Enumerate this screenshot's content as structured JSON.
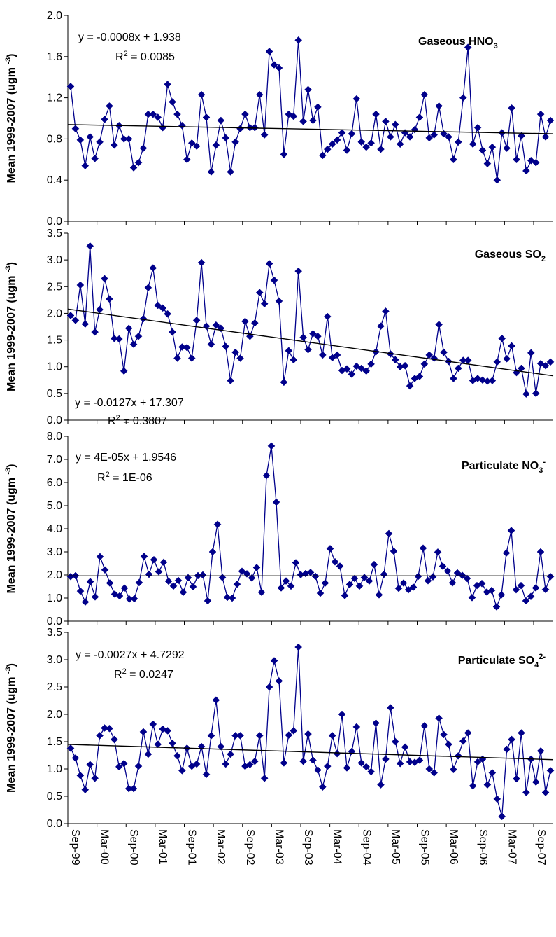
{
  "chart_data": [
    {
      "type": "line",
      "title": "Gaseous HNO3",
      "title_parts": {
        "base": "Gaseous HNO",
        "sub": "3",
        "sup": ""
      },
      "ylabel": "Mean 1999-2007 (ugm -3)",
      "ylim": [
        0,
        2.0
      ],
      "yticks": [
        "0.0",
        "0.4",
        "0.8",
        "1.2",
        "1.6",
        "2.0"
      ],
      "equation": "y = -0.0008x + 1.938",
      "r2": "0.0085",
      "trend": [
        0.94,
        0.85
      ],
      "series": [
        {
          "name": "",
          "values": [
            1.31,
            0.9,
            0.79,
            0.54,
            0.82,
            0.61,
            0.77,
            0.99,
            1.12,
            0.74,
            0.93,
            0.8,
            0.8,
            0.52,
            0.57,
            0.71,
            1.04,
            1.04,
            1.01,
            0.91,
            1.33,
            1.16,
            1.04,
            0.93,
            0.6,
            0.76,
            0.73,
            1.23,
            1.01,
            0.48,
            0.74,
            0.98,
            0.81,
            0.48,
            0.77,
            0.9,
            1.04,
            0.91,
            0.91,
            1.23,
            0.84,
            1.65,
            1.52,
            1.49,
            0.65,
            1.04,
            1.02,
            1.76,
            0.97,
            1.28,
            0.98,
            1.11,
            0.64,
            0.7,
            0.75,
            0.79,
            0.86,
            0.69,
            0.85,
            1.19,
            0.77,
            0.72,
            0.76,
            1.04,
            0.7,
            0.97,
            0.82,
            0.94,
            0.75,
            0.86,
            0.82,
            0.89,
            1.01,
            1.23,
            0.81,
            0.84,
            1.12,
            0.85,
            0.82,
            0.6,
            0.77,
            1.2,
            1.69,
            0.75,
            0.91,
            0.69,
            0.56,
            0.72,
            0.4,
            0.86,
            0.71,
            1.1,
            0.6,
            0.83,
            0.49,
            0.59,
            0.57,
            1.04,
            0.82,
            0.98
          ]
        }
      ],
      "color": "#00008b"
    },
    {
      "type": "line",
      "title": "Gaseous SO2",
      "title_parts": {
        "base": "Gaseous SO",
        "sub": "2",
        "sup": ""
      },
      "ylabel": "Mean 1999-2007 (ugm -3)",
      "ylim": [
        0,
        3.5
      ],
      "yticks": [
        "0.0",
        "0.5",
        "1.0",
        "1.5",
        "2.0",
        "2.5",
        "3.0",
        "3.5"
      ],
      "equation": "y = -0.0127x + 17.307",
      "r2": "0.3807",
      "trend": [
        2.08,
        0.83
      ],
      "series": [
        {
          "name": "",
          "values": [
            1.96,
            1.87,
            2.53,
            1.8,
            3.26,
            1.65,
            2.07,
            2.65,
            2.27,
            1.53,
            1.52,
            0.92,
            1.72,
            1.42,
            1.57,
            1.9,
            2.48,
            2.85,
            2.15,
            2.1,
            1.99,
            1.65,
            1.16,
            1.37,
            1.36,
            1.16,
            1.87,
            2.95,
            1.76,
            1.42,
            1.78,
            1.72,
            1.38,
            0.74,
            1.27,
            1.16,
            1.85,
            1.57,
            1.82,
            2.39,
            2.18,
            2.93,
            2.62,
            2.23,
            0.71,
            1.3,
            1.13,
            2.79,
            1.55,
            1.32,
            1.62,
            1.57,
            1.22,
            1.94,
            1.17,
            1.22,
            0.93,
            0.96,
            0.86,
            1.01,
            0.97,
            0.92,
            1.05,
            1.28,
            1.76,
            2.04,
            1.24,
            1.13,
            1.0,
            1.02,
            0.64,
            0.78,
            0.82,
            1.05,
            1.22,
            1.16,
            1.79,
            1.27,
            1.1,
            0.78,
            0.97,
            1.12,
            1.12,
            0.74,
            0.78,
            0.75,
            0.73,
            0.74,
            1.09,
            1.53,
            1.15,
            1.39,
            0.89,
            0.97,
            0.49,
            1.26,
            0.5,
            1.06,
            1.02,
            1.09
          ]
        }
      ],
      "color": "#00008b"
    },
    {
      "type": "line",
      "title": "Particulate NO3-",
      "title_parts": {
        "base": "Particulate NO",
        "sub": "3",
        "sup": "-"
      },
      "ylabel": "Mean 1999-2007 (ugm -3)",
      "ylim": [
        0,
        8.0
      ],
      "yticks": [
        "0.0",
        "1.0",
        "2.0",
        "3.0",
        "4.0",
        "5.0",
        "6.0",
        "7.0",
        "8.0"
      ],
      "equation": "y = 4E-05x + 1.9546",
      "r2": "1E-06",
      "trend": [
        1.96,
        1.96
      ],
      "series": [
        {
          "name": "",
          "values": [
            1.93,
            1.97,
            1.3,
            0.83,
            1.71,
            1.05,
            2.79,
            2.22,
            1.65,
            1.17,
            1.09,
            1.43,
            0.96,
            0.97,
            1.67,
            2.8,
            2.03,
            2.66,
            2.14,
            2.55,
            1.73,
            1.52,
            1.76,
            1.25,
            1.88,
            1.49,
            1.97,
            2.0,
            0.88,
            3.0,
            4.19,
            1.89,
            1.03,
            1.0,
            1.6,
            2.16,
            2.05,
            1.87,
            2.32,
            1.25,
            6.3,
            7.58,
            5.15,
            1.44,
            1.74,
            1.52,
            2.53,
            2.01,
            2.06,
            2.11,
            1.94,
            1.21,
            1.65,
            3.14,
            2.57,
            2.38,
            1.11,
            1.59,
            1.85,
            1.52,
            1.89,
            1.74,
            2.45,
            1.14,
            2.03,
            3.79,
            3.03,
            1.42,
            1.65,
            1.36,
            1.47,
            1.94,
            3.16,
            1.75,
            1.92,
            2.99,
            2.38,
            2.17,
            1.66,
            2.09,
            1.98,
            1.85,
            1.02,
            1.54,
            1.63,
            1.26,
            1.33,
            0.62,
            1.14,
            2.95,
            3.92,
            1.36,
            1.54,
            0.88,
            1.07,
            1.44,
            3.0,
            1.37,
            1.93
          ]
        }
      ],
      "color": "#00008b"
    },
    {
      "type": "line",
      "title": "Particulate SO42-",
      "title_parts": {
        "base": "Particulate SO",
        "sub": "4",
        "sup": "2-"
      },
      "ylabel": "Mean 1999-2007 (ugm -3)",
      "ylim": [
        0,
        3.5
      ],
      "yticks": [
        "0.0",
        "0.5",
        "1.0",
        "1.5",
        "2.0",
        "2.5",
        "3.0",
        "3.5"
      ],
      "equation": "y = -0.0027x + 4.7292",
      "r2": "0.0247",
      "trend": [
        1.45,
        1.17
      ],
      "series": [
        {
          "name": "",
          "values": [
            1.38,
            1.2,
            0.88,
            0.62,
            1.08,
            0.83,
            1.61,
            1.75,
            1.74,
            1.54,
            1.04,
            1.1,
            0.64,
            0.64,
            1.05,
            1.68,
            1.27,
            1.82,
            1.45,
            1.73,
            1.7,
            1.47,
            1.24,
            0.97,
            1.38,
            1.05,
            1.09,
            1.41,
            0.9,
            1.61,
            2.26,
            1.41,
            1.09,
            1.27,
            1.61,
            1.61,
            1.05,
            1.08,
            1.14,
            1.61,
            0.83,
            2.5,
            2.98,
            2.61,
            1.11,
            1.62,
            1.7,
            3.23,
            1.14,
            1.64,
            1.16,
            0.98,
            0.67,
            1.05,
            1.61,
            1.28,
            2.0,
            1.02,
            1.32,
            1.77,
            1.11,
            1.04,
            0.95,
            1.84,
            0.71,
            1.18,
            2.12,
            1.5,
            1.1,
            1.4,
            1.13,
            1.12,
            1.16,
            1.79,
            1.0,
            0.93,
            1.93,
            1.63,
            1.45,
            0.99,
            1.24,
            1.51,
            1.66,
            0.69,
            1.13,
            1.18,
            0.71,
            0.93,
            0.45,
            0.13,
            1.36,
            1.54,
            0.82,
            1.66,
            0.57,
            1.18,
            0.76,
            1.33,
            0.57,
            0.97
          ]
        }
      ],
      "color": "#00008b"
    }
  ],
  "x_ticks": [
    "Sep-99",
    "Mar-00",
    "Sep-00",
    "Mar-01",
    "Sep-01",
    "Mar-02",
    "Sep-02",
    "Mar-03",
    "Sep-03",
    "Mar-04",
    "Sep-04",
    "Mar-05",
    "Sep-05",
    "Mar-06",
    "Sep-06",
    "Mar-07",
    "Sep-07"
  ],
  "labels": {
    "ylabel_prefix": "Mean 1999-2007 (ugm ",
    "ylabel_sup": "-3",
    "ylabel_suffix": ")",
    "r2_prefix": "R",
    "r2_sup": "2",
    "r2_equals": " = "
  },
  "trend_color": "#000000"
}
